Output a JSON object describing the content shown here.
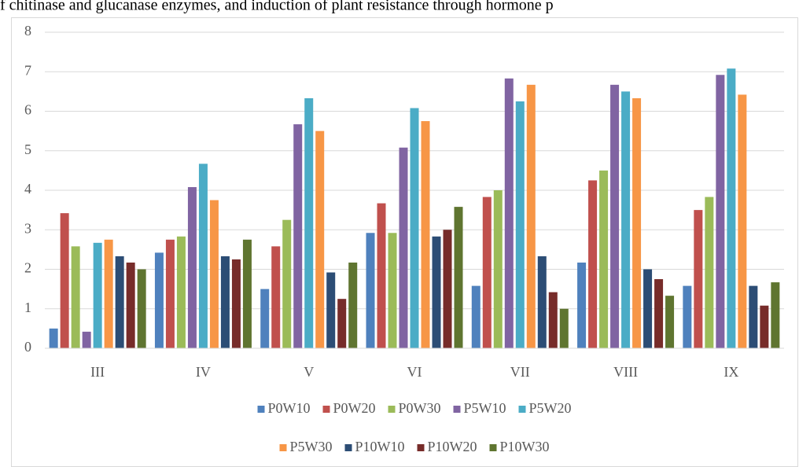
{
  "caption": "f chitinase and glucanase enzymes, and induction of plant resistance through hormone p",
  "chart_data": {
    "type": "bar",
    "categories": [
      "III",
      "IV",
      "V",
      "VI",
      "VII",
      "VIII",
      "IX"
    ],
    "series": [
      {
        "name": "P0W10",
        "color": "#4f81bd",
        "values": [
          0.5,
          2.42,
          1.5,
          2.92,
          1.58,
          2.17,
          1.58
        ]
      },
      {
        "name": "P0W20",
        "color": "#c0504d",
        "values": [
          3.42,
          2.75,
          2.58,
          3.67,
          3.83,
          4.25,
          3.5
        ]
      },
      {
        "name": "P0W30",
        "color": "#9bbb59",
        "values": [
          2.58,
          2.83,
          3.25,
          2.92,
          4.0,
          4.5,
          3.83
        ]
      },
      {
        "name": "P5W10",
        "color": "#8064a2",
        "values": [
          0.42,
          4.08,
          5.67,
          5.08,
          6.83,
          6.67,
          6.92
        ]
      },
      {
        "name": "P5W20",
        "color": "#4bacc6",
        "values": [
          2.67,
          4.67,
          6.33,
          6.08,
          6.25,
          6.5,
          7.08
        ]
      },
      {
        "name": "P5W30",
        "color": "#f79646",
        "values": [
          2.75,
          3.75,
          5.5,
          5.75,
          6.67,
          6.33,
          6.42
        ]
      },
      {
        "name": "P10W10",
        "color": "#2c4d75",
        "values": [
          2.33,
          2.33,
          1.92,
          2.83,
          2.33,
          2.0,
          1.58
        ]
      },
      {
        "name": "P10W20",
        "color": "#772c2a",
        "values": [
          2.17,
          2.25,
          1.25,
          3.0,
          1.42,
          1.75,
          1.08
        ]
      },
      {
        "name": "P10W30",
        "color": "#5f7530",
        "values": [
          2.0,
          2.75,
          2.17,
          3.58,
          1.0,
          1.33,
          1.67
        ]
      }
    ],
    "ylim": [
      0,
      8
    ],
    "yticks": [
      0,
      1,
      2,
      3,
      4,
      5,
      6,
      7,
      8
    ],
    "grid": true,
    "legend": "bottom"
  }
}
